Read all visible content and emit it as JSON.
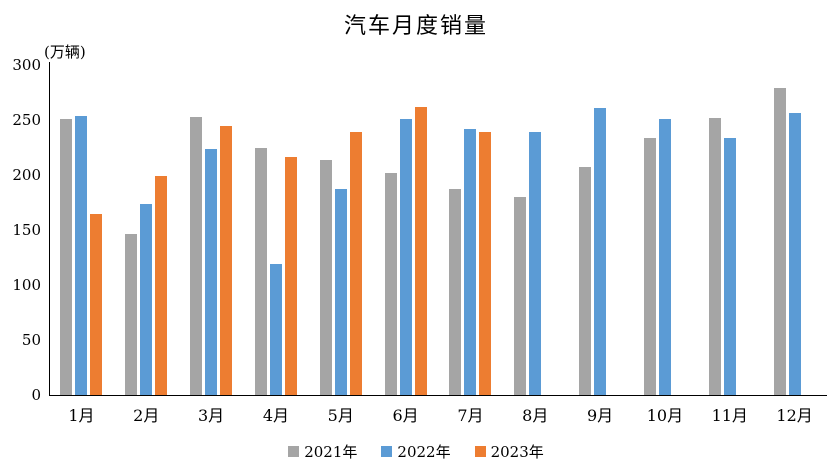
{
  "chart": {
    "title": "汽车月度销量",
    "y_unit_label": "(万辆)"
  },
  "chart_data": {
    "type": "bar",
    "title": "汽车月度销量",
    "xlabel": "",
    "ylabel": "(万辆)",
    "categories": [
      "1月",
      "2月",
      "3月",
      "4月",
      "5月",
      "6月",
      "7月",
      "8月",
      "9月",
      "10月",
      "11月",
      "12月"
    ],
    "series": [
      {
        "name": "2021年",
        "color": "#A5A5A5",
        "values": [
          251,
          146,
          253,
          225,
          214,
          202,
          187,
          180,
          207,
          234,
          252,
          279
        ]
      },
      {
        "name": "2022年",
        "color": "#5B9BD5",
        "values": [
          254,
          174,
          224,
          119,
          187,
          251,
          242,
          239,
          261,
          251,
          234,
          256
        ]
      },
      {
        "name": "2023年",
        "color": "#ED7D31",
        "values": [
          165,
          199,
          245,
          216,
          239,
          262,
          239,
          null,
          null,
          null,
          null,
          null
        ]
      }
    ],
    "ylim": [
      0,
      300
    ],
    "ytick_step": 50,
    "yticks": [
      0,
      50,
      100,
      150,
      200,
      250,
      300
    ],
    "grid": false,
    "legend_position": "bottom"
  }
}
